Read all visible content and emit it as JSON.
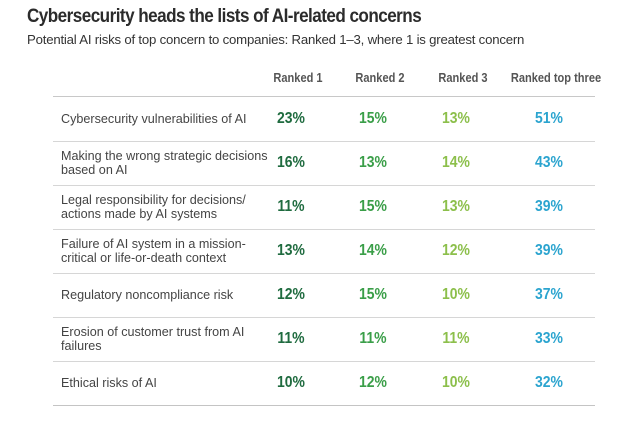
{
  "chart_data": {
    "type": "table",
    "title": "Cybersecurity heads the lists of AI-related concerns",
    "subtitle": "Potential AI risks of top concern to companies: Ranked 1–3, where 1 is greatest concern",
    "columns": [
      "Ranked 1",
      "Ranked 2",
      "Ranked 3",
      "Ranked top three"
    ],
    "column_colors": [
      "#1f6b3f",
      "#3a9e48",
      "#8cbf4b",
      "#2ba4cf"
    ],
    "rows": [
      {
        "label": "Cybersecurity vulnerabilities of AI",
        "values": [
          "23%",
          "15%",
          "13%",
          "51%"
        ]
      },
      {
        "label": "Making the wrong strategic decisions based on AI",
        "values": [
          "16%",
          "13%",
          "14%",
          "43%"
        ]
      },
      {
        "label": "Legal responsibility for decisions/ actions made by AI systems",
        "values": [
          "11%",
          "15%",
          "13%",
          "39%"
        ]
      },
      {
        "label": "Failure of AI system in a mission-critical or life-or-death context",
        "values": [
          "13%",
          "14%",
          "12%",
          "39%"
        ]
      },
      {
        "label": "Regulatory noncompliance risk",
        "values": [
          "12%",
          "15%",
          "10%",
          "37%"
        ]
      },
      {
        "label": "Erosion of customer trust from AI failures",
        "values": [
          "11%",
          "11%",
          "11%",
          "33%"
        ]
      },
      {
        "label": "Ethical risks of AI",
        "values": [
          "10%",
          "12%",
          "10%",
          "32%"
        ]
      }
    ]
  }
}
